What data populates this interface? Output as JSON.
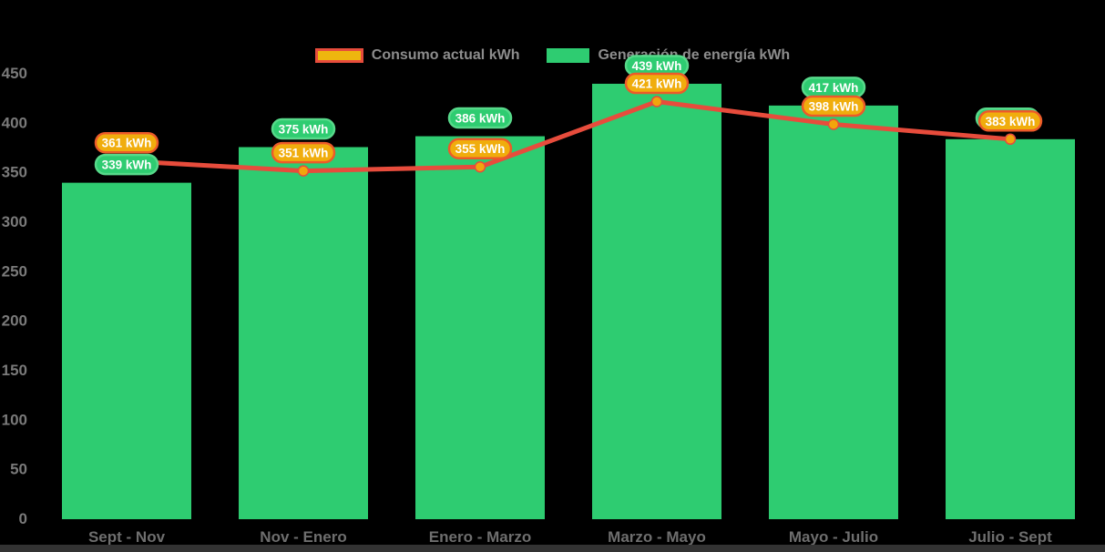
{
  "background": "#000000",
  "footer_bar_color": "#333333",
  "legend": {
    "text_color": "#8d8d8d",
    "items": [
      {
        "label": "Consumo actual kWh",
        "swatch_fill": "#eeb60e",
        "swatch_border": "#e74c3c"
      },
      {
        "label": "Generación de energía kWh",
        "swatch_fill": "#2ecc71",
        "swatch_border": "#2ecc71"
      }
    ]
  },
  "chart_data": {
    "type": "bar+line",
    "title": "",
    "xlabel": "",
    "ylabel": "",
    "unit": "kWh",
    "categories": [
      "Sept - Nov",
      "Nov - Enero",
      "Enero - Marzo",
      "Marzo - Mayo",
      "Mayo - Julio",
      "Julio - Sept"
    ],
    "series": [
      {
        "name": "Generación de energía kWh",
        "type": "bar",
        "color": "#2ecc71",
        "badge_fill": "#2ecc71",
        "badge_border": "#57d98a",
        "values": [
          339,
          375,
          386,
          439,
          417,
          383
        ],
        "labels": [
          "339 kWh",
          "375 kWh",
          "386 kWh",
          "439 kWh",
          "417 kWh",
          "383 kWh"
        ]
      },
      {
        "name": "Consumo actual kWh",
        "type": "line",
        "color": "#e74c3c",
        "marker_color": "#f2a50c",
        "badge_fill": "#f0ad0d",
        "badge_border": "#ec5a2a",
        "values": [
          361,
          351,
          355,
          421,
          398,
          383
        ],
        "labels": [
          "361 kWh",
          "351 kWh",
          "355 kWh",
          "421 kWh",
          "398 kWh",
          "383 kWh"
        ]
      }
    ],
    "ylim": [
      0,
      450
    ],
    "ytick_step": 50,
    "yticks": [
      450,
      400,
      350,
      300,
      250,
      200,
      150,
      100,
      50,
      0
    ],
    "axis_text_color": "#7a7a7a",
    "xtick_text_color": "#6e6e6e",
    "badge_text_color": "#ffffff",
    "grid": false,
    "legend_position": "top"
  }
}
